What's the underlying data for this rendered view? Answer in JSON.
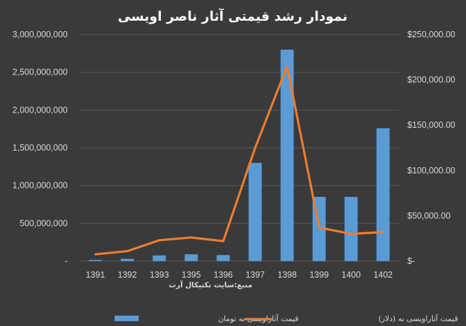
{
  "chart_data": {
    "type": "bar+line",
    "title": "نمودار رشد قیمتی آثار ناصر اویسی",
    "source_note": "منبع:سایت تکنیکال آرت",
    "categories": [
      "1391",
      "1392",
      "1393",
      "1395",
      "1396",
      "1397",
      "1398",
      "1399",
      "1400",
      "1402"
    ],
    "series": [
      {
        "name": "قیمت آثاراویسی  به تومان",
        "type": "bar",
        "axis": "left",
        "color": "#5b9bd5",
        "values": [
          15000000,
          30000000,
          75000000,
          90000000,
          80000000,
          1300000000,
          2800000000,
          850000000,
          850000000,
          1760000000
        ]
      },
      {
        "name": "قیمت آثاراویسی  به (دلار)",
        "type": "line",
        "axis": "right",
        "color": "#ed7d31",
        "values": [
          7500,
          11000,
          23000,
          26000,
          22000,
          125000,
          215000,
          37000,
          30000,
          32000
        ]
      }
    ],
    "y_left": {
      "min": 0,
      "max": 3000000000,
      "ticks": [
        0,
        500000000,
        1000000000,
        1500000000,
        2000000000,
        2500000000,
        3000000000
      ],
      "tick_labels": [
        "-",
        "500,000,000",
        "1,000,000,000",
        "1,500,000,000",
        "2,000,000,000",
        "2,500,000,000",
        "3,000,000,000"
      ]
    },
    "y_right": {
      "min": 0,
      "max": 250000,
      "ticks": [
        0,
        50000,
        100000,
        150000,
        200000,
        250000
      ],
      "tick_labels": [
        "$-",
        "$50,000.00",
        "$100,000.00",
        "$150,000.00",
        "$200,000.00",
        "$250,000.00"
      ]
    },
    "grid": true,
    "legend_position": "bottom"
  },
  "colors": {
    "background": "#3a3a3a",
    "grid": "#595959",
    "text": "#d9d9d9"
  }
}
